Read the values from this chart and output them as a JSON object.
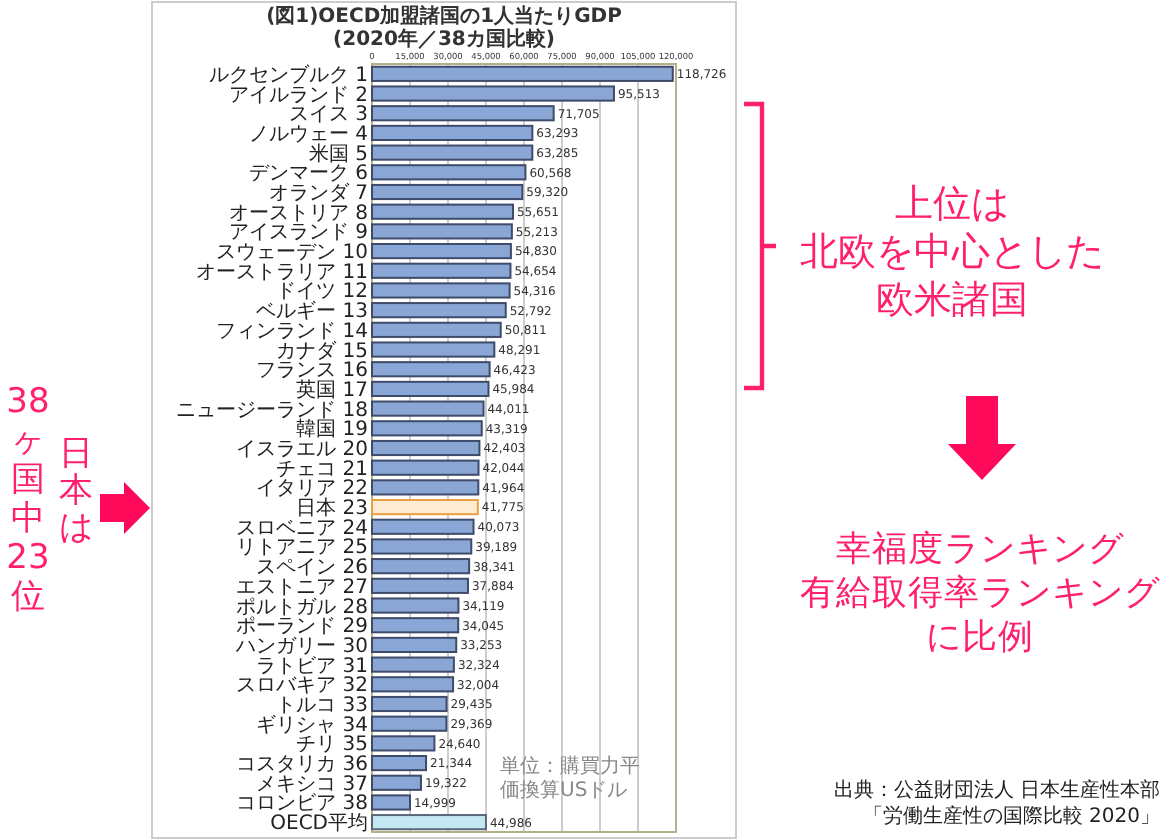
{
  "chart_data": {
    "type": "bar",
    "orientation": "horizontal",
    "title": "(図1)OECD加盟諸国の1人当たりGDP",
    "subtitle": "(2020年／38カ国比較)",
    "categories": [
      "ルクセンブルク 1",
      "アイルランド 2",
      "スイス 3",
      "ノルウェー 4",
      "米国 5",
      "デンマーク 6",
      "オランダ 7",
      "オーストリア 8",
      "アイスランド 9",
      "スウェーデン 10",
      "オーストラリア 11",
      "ドイツ 12",
      "ベルギー 13",
      "フィンランド 14",
      "カナダ 15",
      "フランス 16",
      "英国 17",
      "ニュージーランド 18",
      "韓国 19",
      "イスラエル 20",
      "チェコ 21",
      "イタリア 22",
      "日本 23",
      "スロベニア 24",
      "リトアニア 25",
      "スペイン 26",
      "エストニア 27",
      "ポルトガル 28",
      "ポーランド 29",
      "ハンガリー 30",
      "ラトビア 31",
      "スロバキア 32",
      "トルコ 33",
      "ギリシャ 34",
      "チリ 35",
      "コスタリカ 36",
      "メキシコ 37",
      "コロンビア 38",
      "OECD平均"
    ],
    "values": [
      118726,
      95513,
      71705,
      63293,
      63285,
      60568,
      59320,
      55651,
      55213,
      54830,
      54654,
      54316,
      52792,
      50811,
      48291,
      46423,
      45984,
      44011,
      43319,
      42403,
      42044,
      41964,
      41775,
      40073,
      39189,
      38341,
      37884,
      34119,
      34045,
      33253,
      32324,
      32004,
      29435,
      29369,
      24640,
      21344,
      19322,
      14999,
      44986
    ],
    "value_labels": [
      "118,726",
      "95,513",
      "71,705",
      "63,293",
      "63,285",
      "60,568",
      "59,320",
      "55,651",
      "55,213",
      "54,830",
      "54,654",
      "54,316",
      "52,792",
      "50,811",
      "48,291",
      "46,423",
      "45,984",
      "44,011",
      "43,319",
      "42,403",
      "42,044",
      "41,964",
      "41,775",
      "40,073",
      "39,189",
      "38,341",
      "37,884",
      "34,119",
      "34,045",
      "33,253",
      "32,324",
      "32,004",
      "29,435",
      "29,369",
      "24,640",
      "21,344",
      "19,322",
      "14,999",
      "44,986"
    ],
    "colors": [
      "#8aa6d4",
      "#8aa6d4",
      "#8aa6d4",
      "#8aa6d4",
      "#8aa6d4",
      "#8aa6d4",
      "#8aa6d4",
      "#8aa6d4",
      "#8aa6d4",
      "#8aa6d4",
      "#8aa6d4",
      "#8aa6d4",
      "#8aa6d4",
      "#8aa6d4",
      "#8aa6d4",
      "#8aa6d4",
      "#8aa6d4",
      "#8aa6d4",
      "#8aa6d4",
      "#8aa6d4",
      "#8aa6d4",
      "#8aa6d4",
      "#fdebd3",
      "#8aa6d4",
      "#8aa6d4",
      "#8aa6d4",
      "#8aa6d4",
      "#8aa6d4",
      "#8aa6d4",
      "#8aa6d4",
      "#8aa6d4",
      "#8aa6d4",
      "#8aa6d4",
      "#8aa6d4",
      "#8aa6d4",
      "#8aa6d4",
      "#8aa6d4",
      "#8aa6d4",
      "#c4e8f2"
    ],
    "xlim": [
      0,
      120000
    ],
    "xticks": [
      {
        "value": 0,
        "label": "0"
      },
      {
        "value": 15000,
        "label": "15,000"
      },
      {
        "value": 30000,
        "label": "30,000"
      },
      {
        "value": 45000,
        "label": "45,000"
      },
      {
        "value": 60000,
        "label": "60,000"
      },
      {
        "value": 75000,
        "label": "75,000"
      },
      {
        "value": 90000,
        "label": "90,000"
      },
      {
        "value": 105000,
        "label": "105,000"
      },
      {
        "value": 120000,
        "label": "120,000"
      }
    ],
    "grid": "x",
    "annotations": [
      "単位：購買力平価換算USドル",
      "日本は",
      "38ヶ国中23位",
      "上位は",
      "北欧を中心とした",
      "欧米諸国",
      "幸福度ランキング",
      "有給取得率ランキング",
      "に比例",
      "出典：公益財団法人 日本生産性本部「労働生産性の国際比較 2020」"
    ]
  }
}
